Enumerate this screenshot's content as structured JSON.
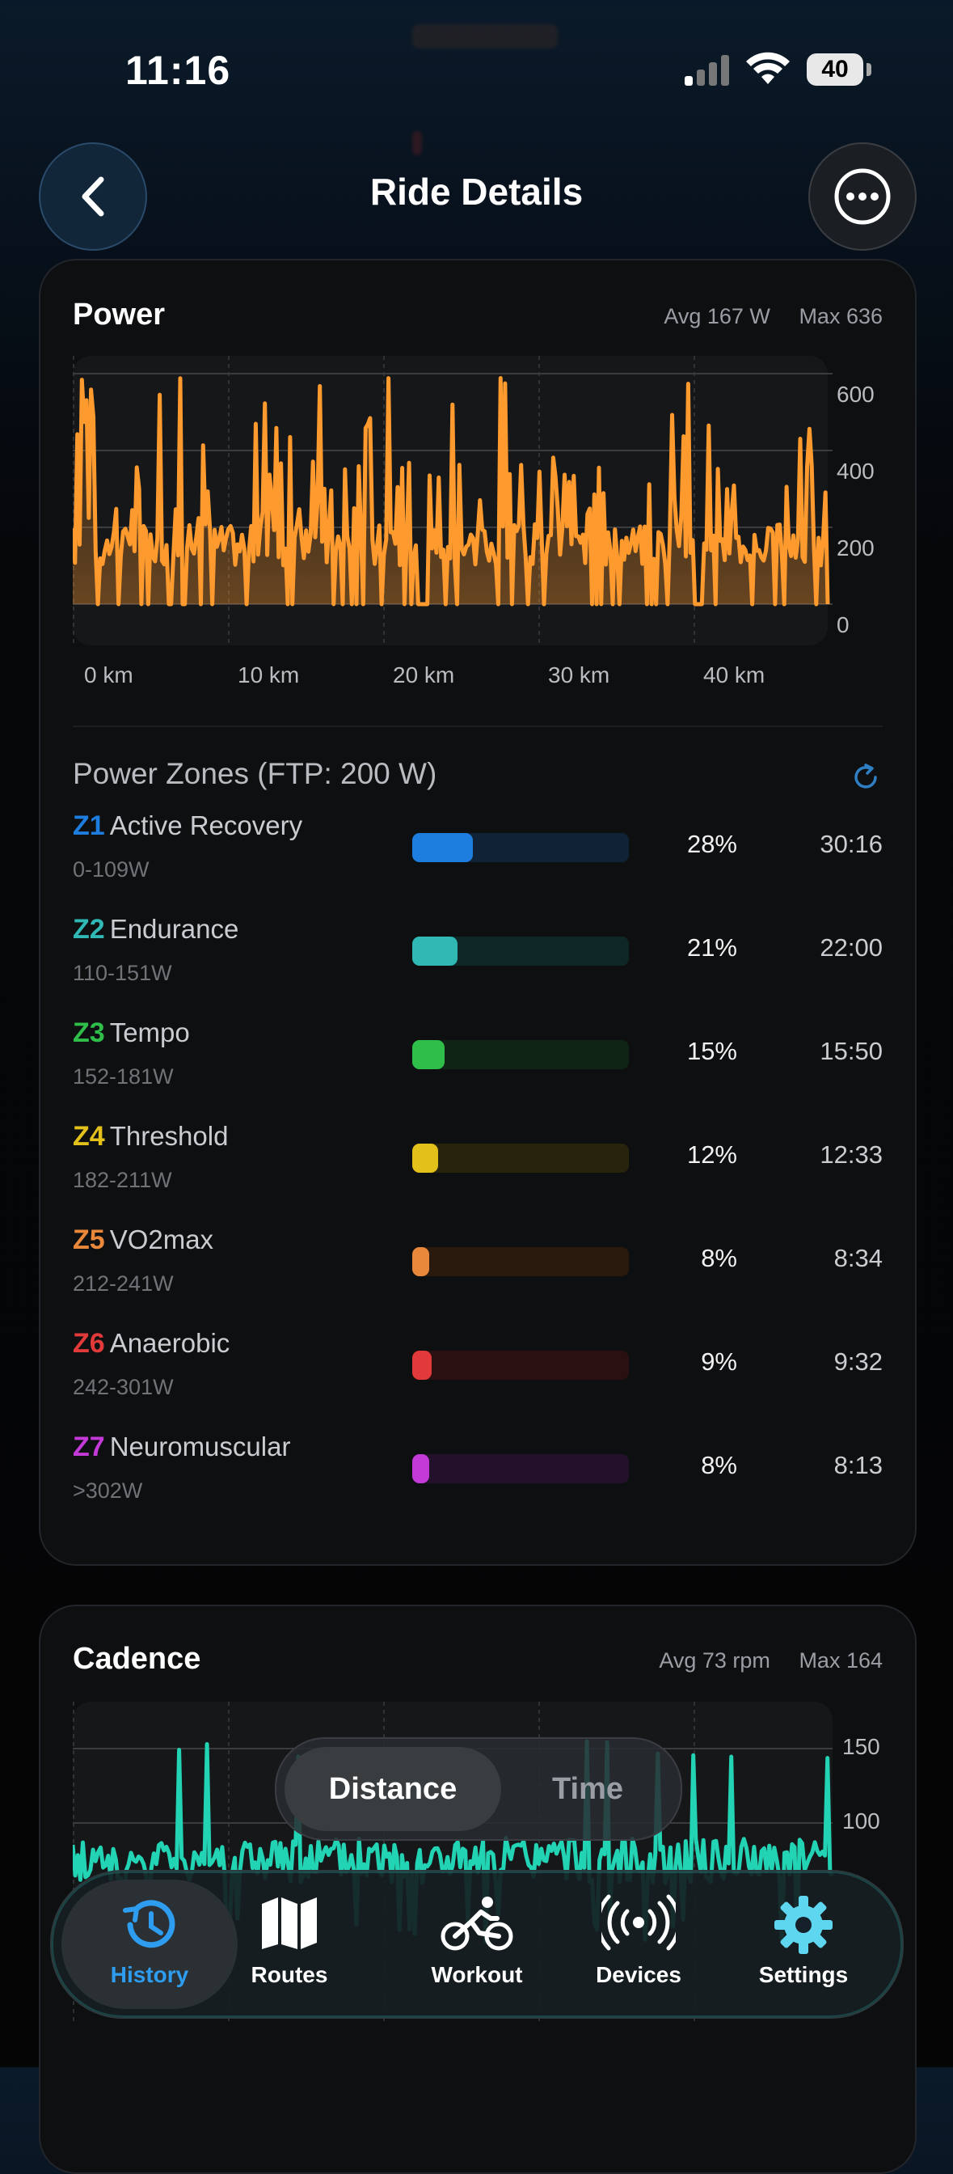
{
  "status_bar": {
    "time": "11:16",
    "battery": "40"
  },
  "header": {
    "title": "Ride Details"
  },
  "power": {
    "title": "Power",
    "avg": "Avg 167 W",
    "max": "Max 636",
    "y_ticks": [
      "600",
      "400",
      "200",
      "0"
    ],
    "x_ticks": [
      "0 km",
      "10 km",
      "20 km",
      "30 km",
      "40 km"
    ]
  },
  "zones": {
    "title": "Power Zones (FTP: 200 W)",
    "items": [
      {
        "code": "Z1",
        "name": "Active Recovery",
        "range": "0-109W",
        "pct": "28%",
        "time": "30:16",
        "color": "#1e7ee0",
        "track": "#0f2236",
        "fill_fraction": 0.28
      },
      {
        "code": "Z2",
        "name": "Endurance",
        "range": "110-151W",
        "pct": "21%",
        "time": "22:00",
        "color": "#2fb8b4",
        "track": "#0e2828",
        "fill_fraction": 0.21
      },
      {
        "code": "Z3",
        "name": "Tempo",
        "range": "152-181W",
        "pct": "15%",
        "time": "15:50",
        "color": "#2fbe4a",
        "track": "#0f2414",
        "fill_fraction": 0.15
      },
      {
        "code": "Z4",
        "name": "Threshold",
        "range": "182-211W",
        "pct": "12%",
        "time": "12:33",
        "color": "#e4c11a",
        "track": "#28230b",
        "fill_fraction": 0.12
      },
      {
        "code": "Z5",
        "name": "VO2max",
        "range": "212-241W",
        "pct": "8%",
        "time": "8:34",
        "color": "#e9883a",
        "track": "#2a1a0e",
        "fill_fraction": 0.08
      },
      {
        "code": "Z6",
        "name": "Anaerobic",
        "range": "242-301W",
        "pct": "9%",
        "time": "9:32",
        "color": "#e23a3a",
        "track": "#2a1010",
        "fill_fraction": 0.09
      },
      {
        "code": "Z7",
        "name": "Neuromuscular",
        "range": ">302W",
        "pct": "8%",
        "time": "8:13",
        "color": "#c43ad8",
        "track": "#23112c",
        "fill_fraction": 0.08
      }
    ]
  },
  "cadence": {
    "title": "Cadence",
    "avg": "Avg 73 rpm",
    "max": "Max 164",
    "y_ticks": [
      "150",
      "100"
    ]
  },
  "segmented": {
    "distance": "Distance",
    "time": "Time"
  },
  "tabbar": {
    "history": "History",
    "routes": "Routes",
    "workout": "Workout",
    "devices": "Devices",
    "settings": "Settings"
  },
  "colors": {
    "power_line": "#ff9a2e",
    "cadence_line": "#22d3b4",
    "accent": "#2e9df0"
  }
}
